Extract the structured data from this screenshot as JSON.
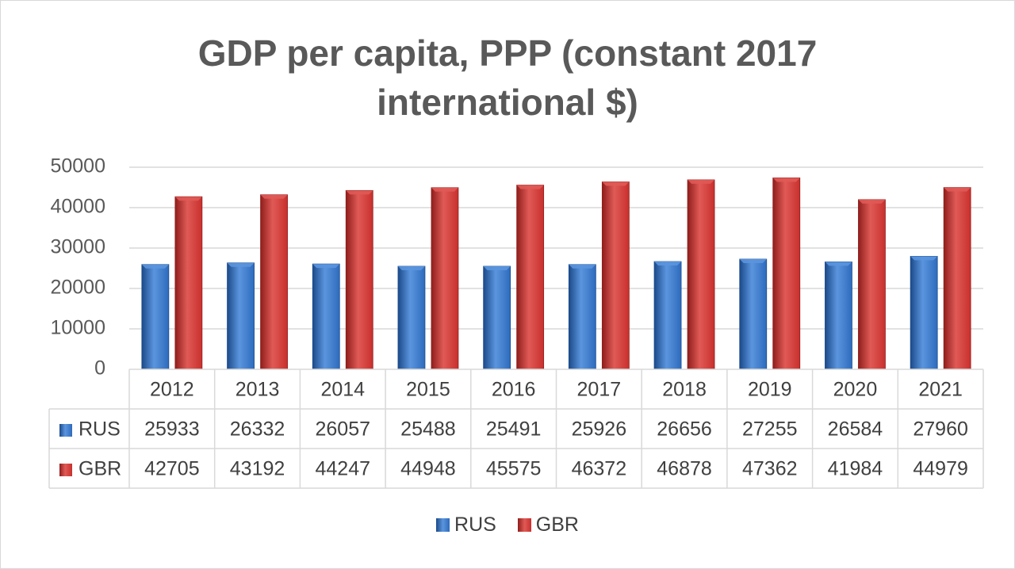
{
  "colors": {
    "rus": "#2e6bbd",
    "rus_light": "#5b95de",
    "rus_dark": "#1b4a8a",
    "gbr": "#c8302d",
    "gbr_light": "#e05a56",
    "gbr_dark": "#8f1e1c",
    "grid": "#d9d9d9",
    "axis_text": "#595959",
    "table_text": "#404040",
    "title": "#595959"
  },
  "chart_data": {
    "type": "bar",
    "title_lines": [
      "GDP per capita, PPP (constant 2017",
      "international $)"
    ],
    "categories": [
      "2012",
      "2013",
      "2014",
      "2015",
      "2016",
      "2017",
      "2018",
      "2019",
      "2020",
      "2021"
    ],
    "series": [
      {
        "name": "RUS",
        "values": [
          25933,
          26332,
          26057,
          25488,
          25491,
          25926,
          26656,
          27255,
          26584,
          27960
        ]
      },
      {
        "name": "GBR",
        "values": [
          42705,
          43192,
          44247,
          44948,
          45575,
          46372,
          46878,
          47362,
          41984,
          44979
        ]
      }
    ],
    "ylim": [
      0,
      50000
    ],
    "yticks": [
      "0",
      "10000",
      "20000",
      "30000",
      "40000",
      "50000"
    ],
    "grid": true,
    "data_table": true,
    "legend": "bottom"
  }
}
